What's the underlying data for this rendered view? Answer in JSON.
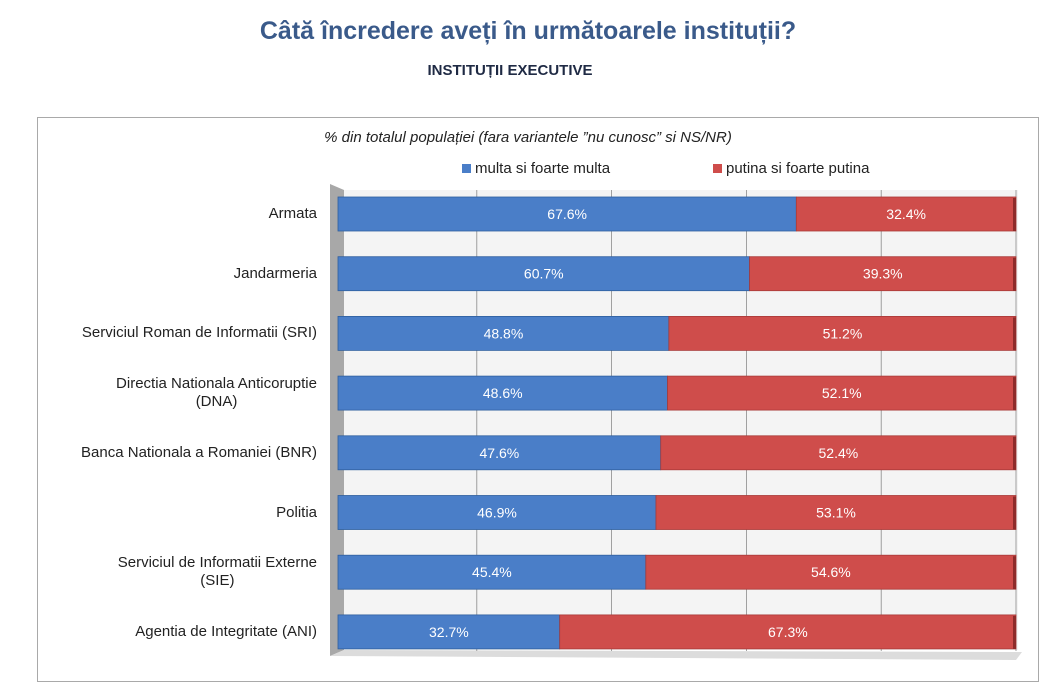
{
  "header": {
    "title": "Câtă încredere aveți în următoarele instituții?",
    "subtitle": "INSTITUȚII EXECUTIVE"
  },
  "chart_data": {
    "type": "bar",
    "orientation": "horizontal",
    "stacked": "100%",
    "title": "% din totalul populației (fara variantele ”nu cunosc” si NS/NR)",
    "xlabel": "",
    "ylabel": "",
    "xlim": [
      0,
      100
    ],
    "grid": true,
    "legend_position": "top",
    "categories": [
      [
        "Armata"
      ],
      [
        "Jandarmeria"
      ],
      [
        "Serviciul Roman de Informatii (SRI)"
      ],
      [
        "Directia Nationala Anticoruptie",
        "(DNA)"
      ],
      [
        "Banca Nationala a Romaniei (BNR)"
      ],
      [
        "Politia"
      ],
      [
        "Serviciul de Informatii Externe",
        "(SIE)"
      ],
      [
        "Agentia de Integritate (ANI)"
      ]
    ],
    "series": [
      {
        "name": "multa si foarte multa",
        "color": "#4a7ec8",
        "values": [
          67.6,
          60.7,
          48.8,
          48.6,
          47.6,
          46.9,
          45.4,
          32.7
        ],
        "labels": [
          "67.6%",
          "60.7%",
          "48.8%",
          "48.6%",
          "47.6%",
          "46.9%",
          "45.4%",
          "32.7%"
        ]
      },
      {
        "name": "putina si foarte putina",
        "color": "#cf4d4b",
        "values": [
          32.4,
          39.3,
          51.2,
          52.1,
          52.4,
          53.1,
          54.6,
          67.3
        ],
        "labels": [
          "32.4%",
          "39.3%",
          "51.2%",
          "52.1%",
          "52.4%",
          "53.1%",
          "54.6%",
          "67.3%"
        ]
      }
    ]
  }
}
